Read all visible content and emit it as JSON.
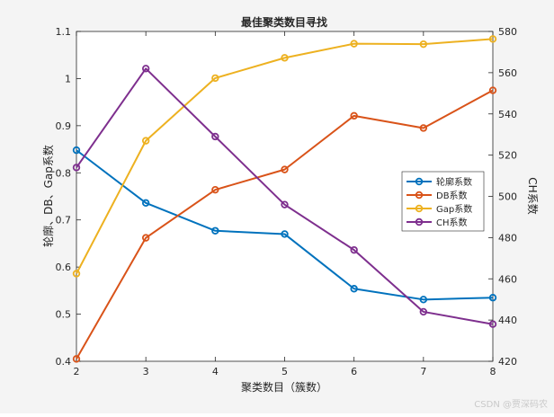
{
  "watermark": "CSDN @贾深码农",
  "chart_data": {
    "type": "line",
    "title": "最佳聚类数目寻找",
    "xlabel": "聚类数目（簇数）",
    "ylabel_left": "轮廓、DB、Gap系数",
    "ylabel_right": "CH系数",
    "x": [
      2,
      3,
      4,
      5,
      6,
      7,
      8
    ],
    "xlim": [
      2,
      8
    ],
    "ylim_left": [
      0.4,
      1.1
    ],
    "ylim_right": [
      420,
      580
    ],
    "yticks_left": [
      0.4,
      0.5,
      0.6,
      0.7,
      0.8,
      0.9,
      1,
      1.1
    ],
    "yticks_right": [
      420,
      440,
      460,
      480,
      500,
      520,
      540,
      560,
      580
    ],
    "legend_position": "right",
    "grid": false,
    "series": [
      {
        "name": "轮廓系数",
        "axis": "left",
        "color": "#0072BD",
        "values": [
          0.848,
          0.736,
          0.677,
          0.67,
          0.554,
          0.531,
          0.535
        ]
      },
      {
        "name": "DB系数",
        "axis": "left",
        "color": "#D95319",
        "values": [
          0.405,
          0.662,
          0.764,
          0.807,
          0.921,
          0.895,
          0.975
        ]
      },
      {
        "name": "Gap系数",
        "axis": "left",
        "color": "#EDB120",
        "values": [
          0.586,
          0.868,
          1.001,
          1.044,
          1.074,
          1.073,
          1.084
        ]
      },
      {
        "name": "CH系数",
        "axis": "right",
        "color": "#7E2F8E",
        "values": [
          514,
          562,
          529,
          496,
          474,
          444,
          438
        ]
      }
    ]
  }
}
